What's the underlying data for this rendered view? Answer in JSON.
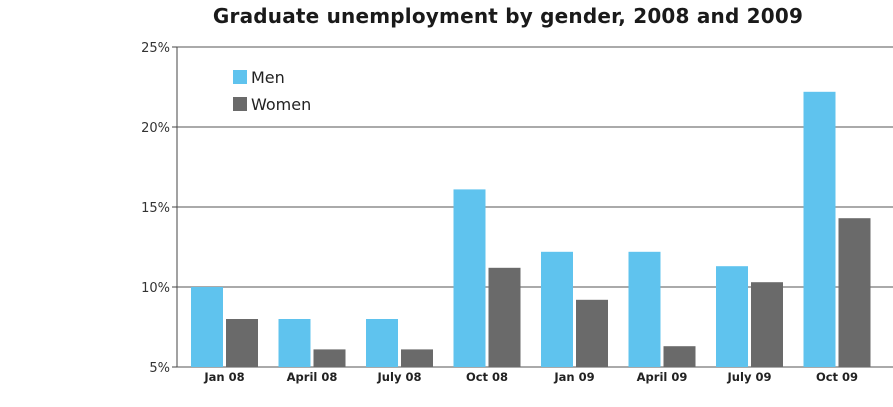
{
  "chart_data": {
    "type": "bar",
    "title": "Graduate unemployment by gender, 2008 and 2009",
    "xlabel": "",
    "ylabel": "",
    "categories": [
      "Jan 08",
      "April 08",
      "July 08",
      "Oct 08",
      "Jan 09",
      "April 09",
      "July 09",
      "Oct 09"
    ],
    "series": [
      {
        "name": "Men",
        "color": "#5fc3ee",
        "values": [
          10.0,
          8.0,
          8.0,
          16.1,
          12.2,
          12.2,
          11.3,
          22.2
        ]
      },
      {
        "name": "Women",
        "color": "#6a6a6a",
        "values": [
          8.0,
          6.1,
          6.1,
          11.2,
          9.2,
          6.3,
          10.3,
          14.3
        ]
      }
    ],
    "ylim": [
      5,
      25
    ],
    "yticks": [
      5,
      10,
      15,
      20,
      25
    ],
    "ytick_labels": [
      "5%",
      "10%",
      "15%",
      "20%",
      "25%"
    ],
    "grid": true,
    "legend_position": "top-left"
  }
}
